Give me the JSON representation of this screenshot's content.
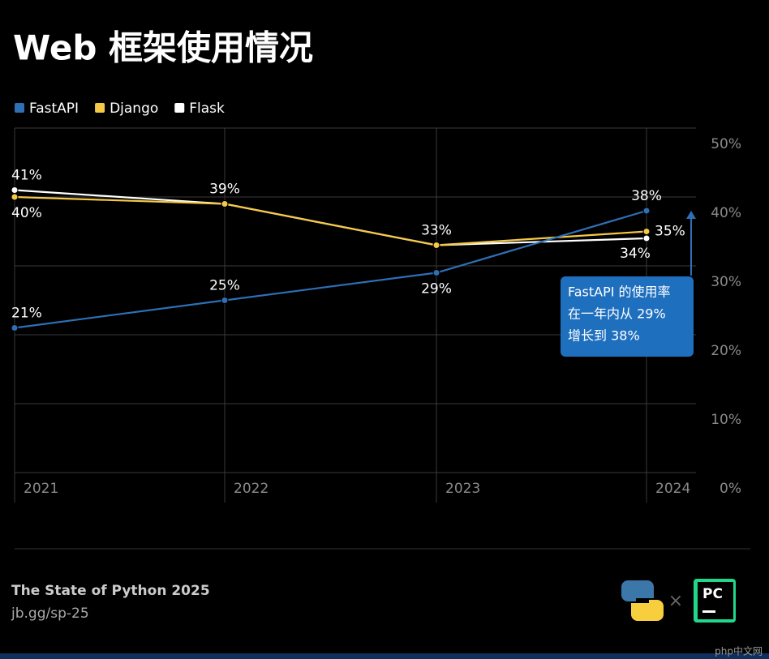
{
  "chart_data": {
    "type": "line",
    "title": "Web 框架使用情况",
    "x": [
      "2021",
      "2022",
      "2023",
      "2024"
    ],
    "series": [
      {
        "name": "FastAPI",
        "color": "#2f6fb6",
        "values": [
          21,
          25,
          29,
          38
        ],
        "value_labels": [
          "21%",
          "25%",
          "29%",
          "38%"
        ]
      },
      {
        "name": "Django",
        "color": "#f6c945",
        "values": [
          40,
          39,
          33,
          35
        ],
        "value_labels": [
          "40%",
          "39%",
          "33%",
          "35%"
        ]
      },
      {
        "name": "Flask",
        "color": "#ffffff",
        "values": [
          41,
          39,
          33,
          34
        ],
        "value_labels": [
          "41%",
          null,
          null,
          "34%"
        ]
      }
    ],
    "ylim": [
      0,
      50
    ],
    "yticks": [
      {
        "value": 0,
        "label": "0%"
      },
      {
        "value": 10,
        "label": "10%"
      },
      {
        "value": 20,
        "label": "20%"
      },
      {
        "value": 30,
        "label": "30%"
      },
      {
        "value": 40,
        "label": "40%"
      },
      {
        "value": 50,
        "label": "50%"
      }
    ],
    "grid": true,
    "legend": "top-left",
    "annotation": [
      "FastAPI 的使用率",
      "在一年内从 29%",
      "增长到 38%"
    ]
  },
  "footer": {
    "source": "The State of Python 2025",
    "link": "jb.gg/sp-25",
    "watermark": "php中文网"
  }
}
